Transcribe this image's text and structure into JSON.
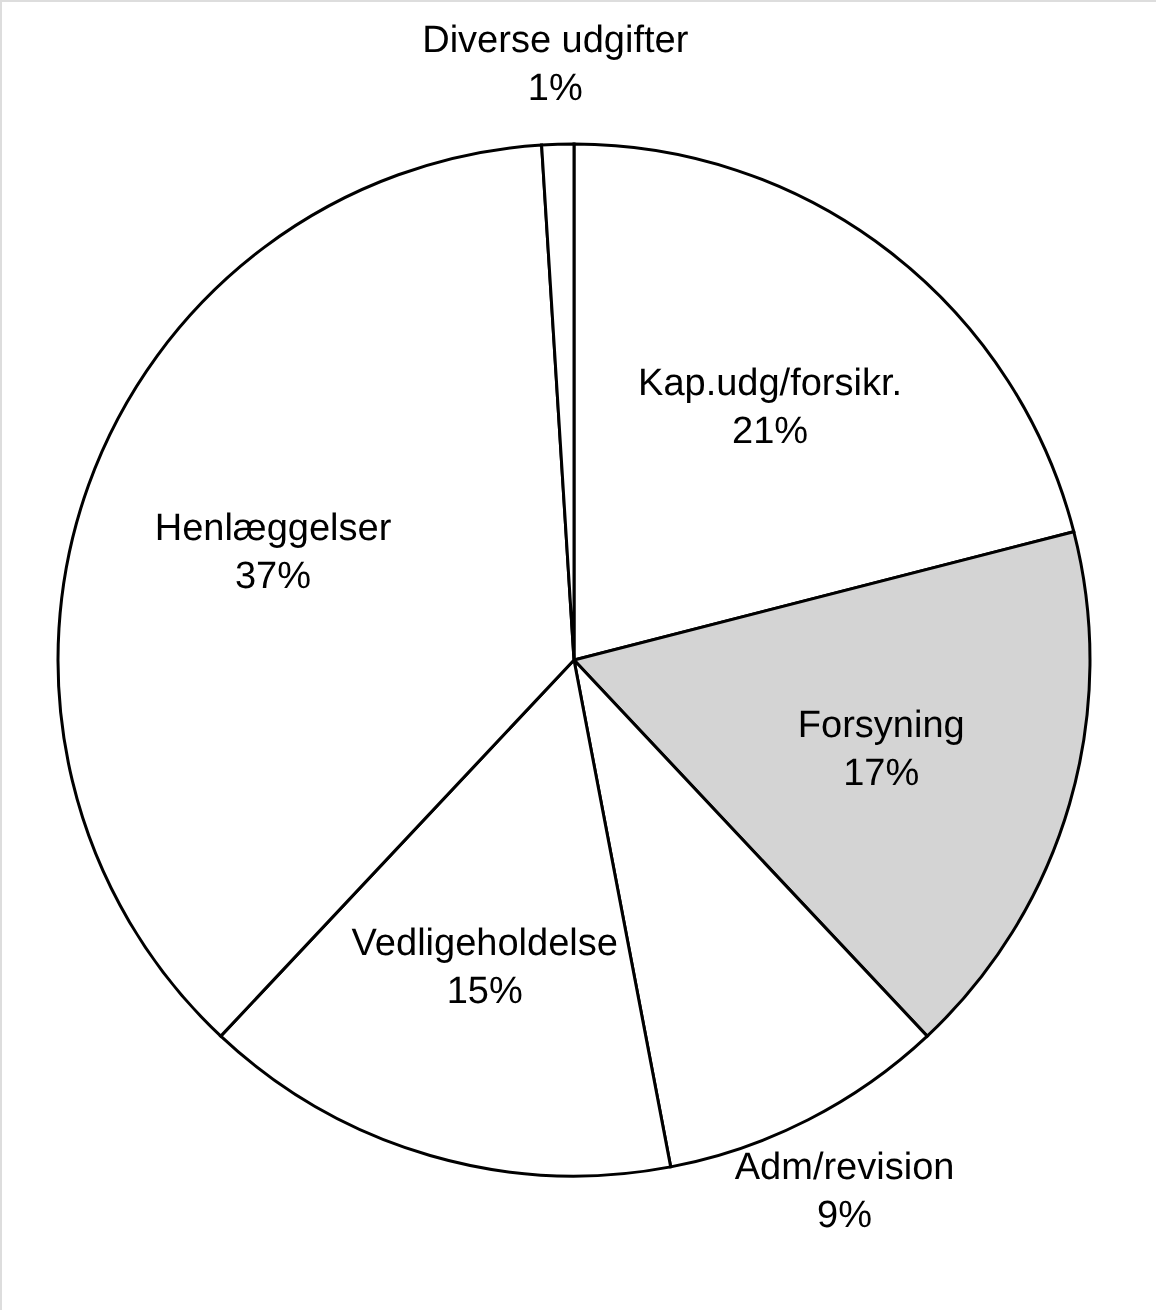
{
  "chart_data": {
    "type": "pie",
    "categories": [
      "Kap.udg/forsikr.",
      "Forsyning",
      "Adm/revision",
      "Vedligeholdelse",
      "Henlæggelser",
      "Diverse udgifter"
    ],
    "values": [
      21,
      17,
      9,
      15,
      37,
      1
    ],
    "value_labels": [
      "21%",
      "17%",
      "9%",
      "15%",
      "37%",
      "1%"
    ],
    "colors": [
      "#ffffff",
      "#d4d4d4",
      "#ffffff",
      "#ffffff",
      "#ffffff",
      "#ffffff"
    ]
  }
}
